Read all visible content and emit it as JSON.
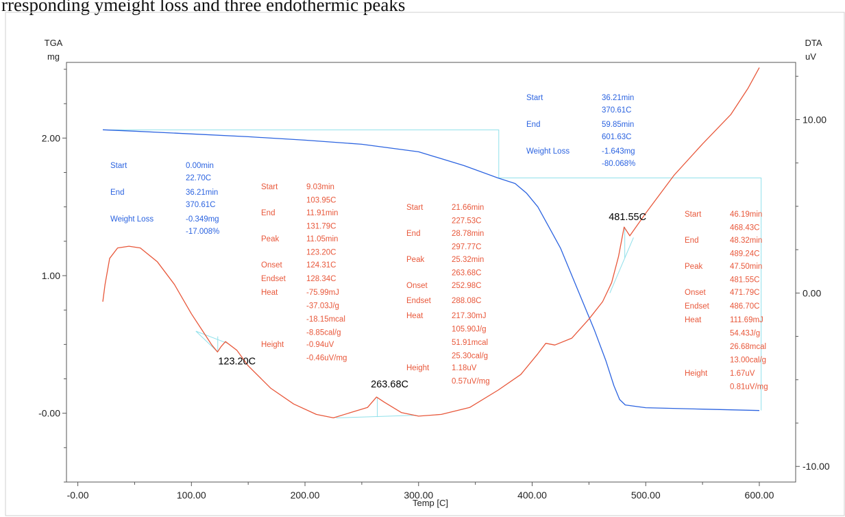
{
  "page": {
    "caption": "rresponding ymeight loss and three endothermic peaks"
  },
  "chart_data": {
    "type": "line",
    "xlabel": "Temp  [C]",
    "y1label_top": "TGA",
    "y1label_unit": "mg",
    "y2label_top": "DTA",
    "y2label_unit": "uV",
    "xlim": [
      -10,
      632
    ],
    "ylim_left": [
      -0.5,
      2.55
    ],
    "ylim_right": [
      -10.9,
      13.3
    ],
    "x_ticks": [
      {
        "v": 0,
        "label": "-0.00"
      },
      {
        "v": 100,
        "label": "100.00"
      },
      {
        "v": 200,
        "label": "200.00"
      },
      {
        "v": 300,
        "label": "300.00"
      },
      {
        "v": 400,
        "label": "400.00"
      },
      {
        "v": 500,
        "label": "500.00"
      },
      {
        "v": 600,
        "label": "600.00"
      }
    ],
    "y_left_ticks": [
      {
        "v": 0,
        "label": "-0.00"
      },
      {
        "v": 1,
        "label": "1.00"
      },
      {
        "v": 2,
        "label": "2.00"
      }
    ],
    "y_right_ticks": [
      {
        "v": -10,
        "label": "-10.00"
      },
      {
        "v": 0,
        "label": "0.00"
      },
      {
        "v": 10,
        "label": "10.00"
      }
    ],
    "series": [
      {
        "color": "#2b63e0",
        "axis": "left",
        "points": [
          [
            22,
            2.06
          ],
          [
            50,
            2.05
          ],
          [
            100,
            2.03
          ],
          [
            150,
            2.01
          ],
          [
            200,
            1.985
          ],
          [
            250,
            1.955
          ],
          [
            300,
            1.9
          ],
          [
            340,
            1.8
          ],
          [
            370,
            1.71
          ],
          [
            385,
            1.67
          ],
          [
            395,
            1.6
          ],
          [
            405,
            1.5
          ],
          [
            415,
            1.35
          ],
          [
            425,
            1.2
          ],
          [
            435,
            1.0
          ],
          [
            445,
            0.8
          ],
          [
            455,
            0.6
          ],
          [
            465,
            0.38
          ],
          [
            472,
            0.2
          ],
          [
            477,
            0.1
          ],
          [
            482,
            0.06
          ],
          [
            500,
            0.04
          ],
          [
            550,
            0.03
          ],
          [
            600,
            0.02
          ]
        ]
      },
      {
        "color": "#e8573a",
        "axis": "right",
        "points": [
          [
            22,
            -0.5
          ],
          [
            24,
            0.5
          ],
          [
            28,
            2.0
          ],
          [
            35,
            2.6
          ],
          [
            45,
            2.7
          ],
          [
            55,
            2.6
          ],
          [
            70,
            1.8
          ],
          [
            85,
            0.5
          ],
          [
            100,
            -1.2
          ],
          [
            110,
            -2.2
          ],
          [
            118,
            -3.0
          ],
          [
            123,
            -3.4
          ],
          [
            126,
            -3.1
          ],
          [
            130,
            -2.8
          ],
          [
            140,
            -3.3
          ],
          [
            150,
            -4.2
          ],
          [
            170,
            -5.5
          ],
          [
            190,
            -6.4
          ],
          [
            210,
            -7.0
          ],
          [
            225,
            -7.2
          ],
          [
            240,
            -6.9
          ],
          [
            255,
            -6.6
          ],
          [
            263,
            -6.0
          ],
          [
            270,
            -6.3
          ],
          [
            285,
            -6.9
          ],
          [
            300,
            -7.1
          ],
          [
            320,
            -7.0
          ],
          [
            345,
            -6.6
          ],
          [
            370,
            -5.6
          ],
          [
            390,
            -4.7
          ],
          [
            405,
            -3.5
          ],
          [
            412,
            -2.9
          ],
          [
            420,
            -3.0
          ],
          [
            435,
            -2.6
          ],
          [
            450,
            -1.5
          ],
          [
            462,
            -0.5
          ],
          [
            470,
            0.6
          ],
          [
            476,
            2.1
          ],
          [
            481,
            3.8
          ],
          [
            486,
            3.3
          ],
          [
            500,
            4.6
          ],
          [
            525,
            6.8
          ],
          [
            550,
            8.6
          ],
          [
            575,
            10.3
          ],
          [
            590,
            11.8
          ],
          [
            600,
            13.0
          ]
        ]
      }
    ],
    "peak_labels": [
      {
        "x": 123.2,
        "y": -3.4,
        "label": "123.20C"
      },
      {
        "x": 263.68,
        "y": -6.0,
        "label": "263.68C"
      },
      {
        "x": 481.55,
        "y": 3.8,
        "label": "481.55C"
      }
    ],
    "annotations": {
      "tga1": {
        "color": "blue",
        "rows": [
          {
            "k": "Start",
            "v1": "0.00min",
            "v2": "22.70C"
          },
          {
            "k": "End",
            "v1": "36.21min",
            "v2": "370.61C"
          },
          {
            "k": "Weight Loss",
            "v1": "-0.349mg",
            "v2": "-17.008%"
          }
        ]
      },
      "tga2": {
        "color": "blue",
        "rows": [
          {
            "k": "Start",
            "v1": "36.21min",
            "v2": "370.61C"
          },
          {
            "k": "End",
            "v1": "59.85min",
            "v2": "601.63C"
          },
          {
            "k": "Weight Loss",
            "v1": "-1.643mg",
            "v2": "-80.068%"
          }
        ]
      },
      "dta1": {
        "color": "red",
        "rows": [
          {
            "k": "Start",
            "v": [
              "9.03min",
              "103.95C"
            ]
          },
          {
            "k": "End",
            "v": [
              "11.91min",
              "131.79C"
            ]
          },
          {
            "k": "Peak",
            "v": [
              "11.05min",
              "123.20C"
            ]
          },
          {
            "k": "Onset",
            "v": [
              "124.31C"
            ]
          },
          {
            "k": "Endset",
            "v": [
              "128.34C"
            ]
          },
          {
            "k": "Heat",
            "v": [
              "-75.99mJ",
              "-37.03J/g",
              "-18.15mcal",
              "-8.85cal/g"
            ]
          },
          {
            "k": "Height",
            "v": [
              "-0.94uV",
              "-0.46uV/mg"
            ]
          }
        ]
      },
      "dta2": {
        "color": "red",
        "rows": [
          {
            "k": "Start",
            "v": [
              "21.66min",
              "227.53C"
            ]
          },
          {
            "k": "End",
            "v": [
              "28.78min",
              "297.77C"
            ]
          },
          {
            "k": "Peak",
            "v": [
              "25.32min",
              "263.68C"
            ]
          },
          {
            "k": "Onset",
            "v": [
              "252.98C"
            ]
          },
          {
            "k": "Endset",
            "v": [
              "288.08C"
            ]
          },
          {
            "k": "Heat",
            "v": [
              "217.30mJ",
              "105.90J/g",
              "51.91mcal",
              "25.30cal/g"
            ]
          },
          {
            "k": "Height",
            "v": [
              "1.18uV",
              "0.57uV/mg"
            ]
          }
        ]
      },
      "dta3": {
        "color": "red",
        "rows": [
          {
            "k": "Start",
            "v": [
              "46.19min",
              "468.43C"
            ]
          },
          {
            "k": "End",
            "v": [
              "48.32min",
              "489.24C"
            ]
          },
          {
            "k": "Peak",
            "v": [
              "47.50min",
              "481.55C"
            ]
          },
          {
            "k": "Onset",
            "v": [
              "471.79C"
            ]
          },
          {
            "k": "Endset",
            "v": [
              "486.70C"
            ]
          },
          {
            "k": "Heat",
            "v": [
              "111.69mJ",
              "54.43J/g",
              "26.68mcal",
              "13.00cal/g"
            ]
          },
          {
            "k": "Height",
            "v": [
              "1.67uV",
              "0.81uV/mg"
            ]
          }
        ]
      }
    },
    "colors": {
      "tga": "#2b63e0",
      "dta": "#e8573a",
      "construction": "#8fe0ea",
      "axis": "#555555"
    }
  }
}
